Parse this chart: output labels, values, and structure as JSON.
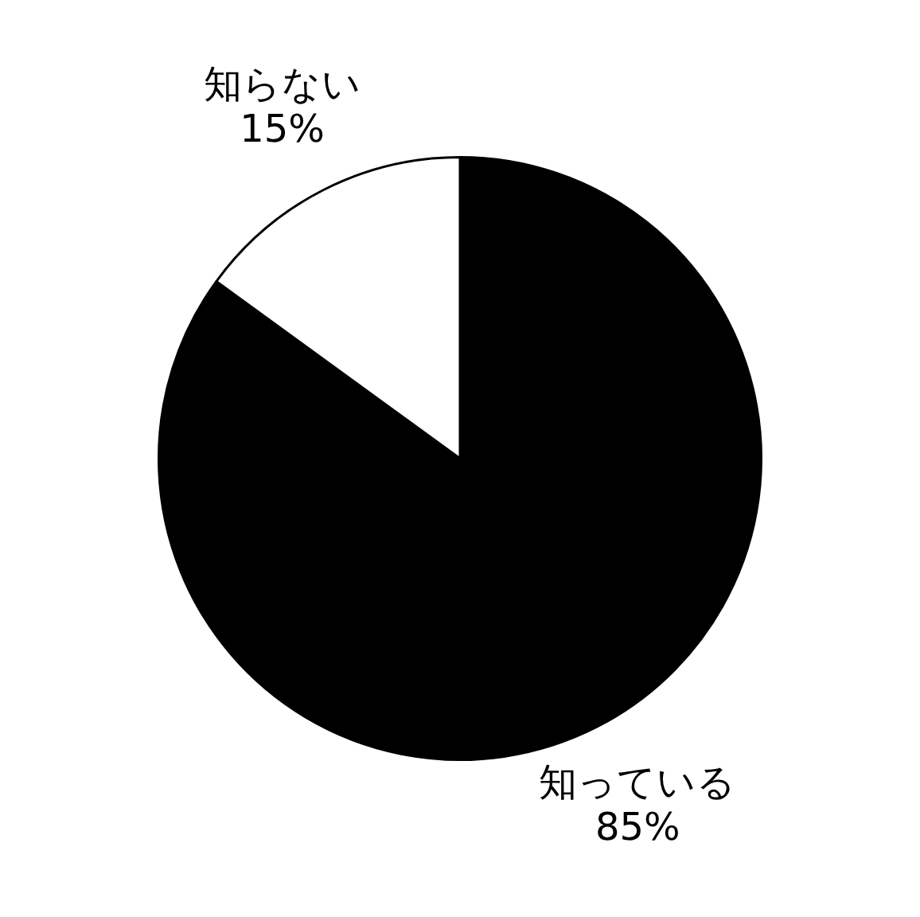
{
  "chart_data": {
    "type": "pie",
    "categories": [
      "知っている",
      "知らない"
    ],
    "values": [
      85,
      15
    ],
    "colors": [
      "#000000",
      "#ffffff"
    ],
    "value_labels": [
      "85%",
      "15%"
    ],
    "legend": false
  }
}
